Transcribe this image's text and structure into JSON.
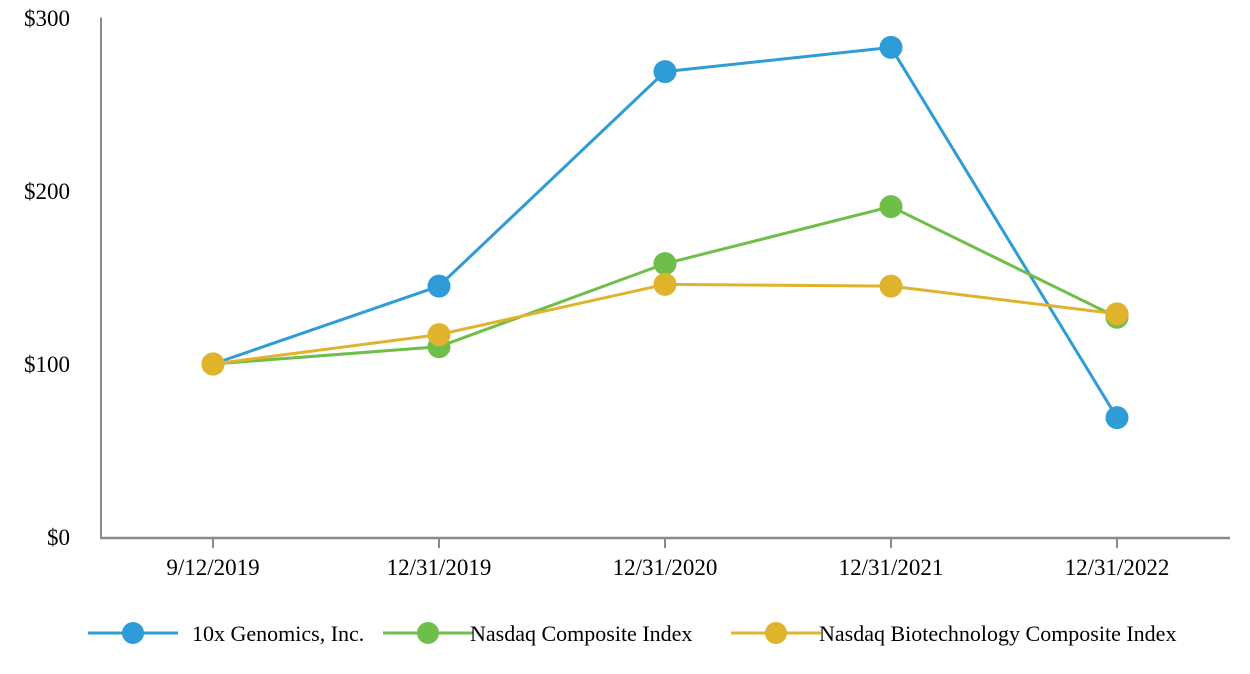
{
  "chart_data": {
    "type": "line",
    "title": "",
    "xlabel": "",
    "ylabel": "",
    "x_categories": [
      "9/12/2019",
      "12/31/2019",
      "12/31/2020",
      "12/31/2021",
      "12/31/2022"
    ],
    "series": [
      {
        "name": "10x Genomics, Inc.",
        "color": "#2D9CD7",
        "values": [
          100,
          145,
          269,
          283,
          69
        ]
      },
      {
        "name": "Nasdaq Composite Index",
        "color": "#6FBE4A",
        "values": [
          100,
          110,
          158,
          191,
          127
        ]
      },
      {
        "name": "Nasdaq Biotechnology Composite Index",
        "color": "#E0B32C",
        "values": [
          100,
          117,
          146,
          145,
          129
        ]
      }
    ],
    "ylim": [
      0,
      300
    ],
    "yticks": [
      {
        "value": 0,
        "label": "$0"
      },
      {
        "value": 100,
        "label": "$100"
      },
      {
        "value": 200,
        "label": "$200"
      },
      {
        "value": 300,
        "label": "$300"
      }
    ],
    "grid": false,
    "legend_position": "bottom",
    "axis_color": "#8A8A8A",
    "text_color": "#000000",
    "background_color": "#FFFFFF"
  }
}
